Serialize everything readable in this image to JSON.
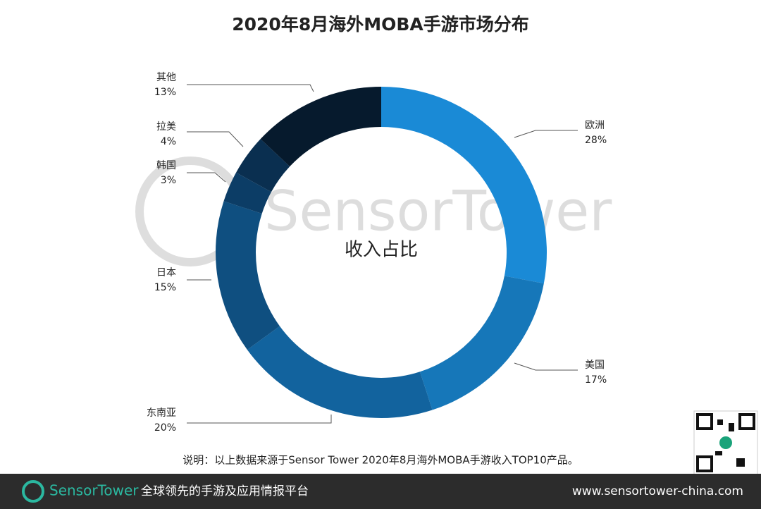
{
  "chart_data": {
    "type": "donut",
    "title": "2020年8月海外MOBA手游市场分布",
    "center_label": "收入占比",
    "categories": [
      "欧洲",
      "美国",
      "东南亚",
      "日本",
      "韩国",
      "拉美",
      "其他"
    ],
    "values": [
      28,
      17,
      20,
      15,
      3,
      4,
      13
    ],
    "value_labels": [
      "28%",
      "17%",
      "20%",
      "15%",
      "3%",
      "4%",
      "13%"
    ],
    "colors": [
      "#1a8ad6",
      "#1677b9",
      "#12639e",
      "#0f4f80",
      "#0c3d66",
      "#0a2f50",
      "#061a2d"
    ],
    "note": "说明：以上数据来源于Sensor Tower 2020年8月海外MOBA手游收入TOP10产品。",
    "watermark": "SensorTower"
  },
  "footer": {
    "brand": "SensorTower",
    "tagline": "全球领先的手游及应用情报平台",
    "url": "www.sensortower-china.com"
  }
}
